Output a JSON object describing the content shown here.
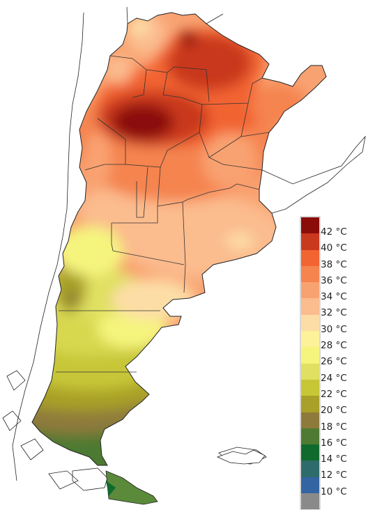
{
  "legend": {
    "unit": "°C",
    "items": [
      {
        "label": "42 °C",
        "color": "#8b0d0a"
      },
      {
        "label": "40 °C",
        "color": "#c9391e"
      },
      {
        "label": "38 °C",
        "color": "#f26432"
      },
      {
        "label": "36 °C",
        "color": "#f5844f"
      },
      {
        "label": "34 °C",
        "color": "#f9a271"
      },
      {
        "label": "32 °C",
        "color": "#fbbc8e"
      },
      {
        "label": "30 °C",
        "color": "#fddda6"
      },
      {
        "label": "28 °C",
        "color": "#fdf19a"
      },
      {
        "label": "26 °C",
        "color": "#f5f57e"
      },
      {
        "label": "24 °C",
        "color": "#e0e062"
      },
      {
        "label": "22 °C",
        "color": "#c7c637"
      },
      {
        "label": "20 °C",
        "color": "#a8a028"
      },
      {
        "label": "18 °C",
        "color": "#8e7a3b"
      },
      {
        "label": "16 °C",
        "color": "#4e7a33"
      },
      {
        "label": "14 °C",
        "color": "#106a2e"
      },
      {
        "label": "12 °C",
        "color": "#2e6b6b"
      },
      {
        "label": "10 °C",
        "color": "#3464a1"
      },
      {
        "label": "",
        "color": "#8a8a8a"
      }
    ]
  }
}
